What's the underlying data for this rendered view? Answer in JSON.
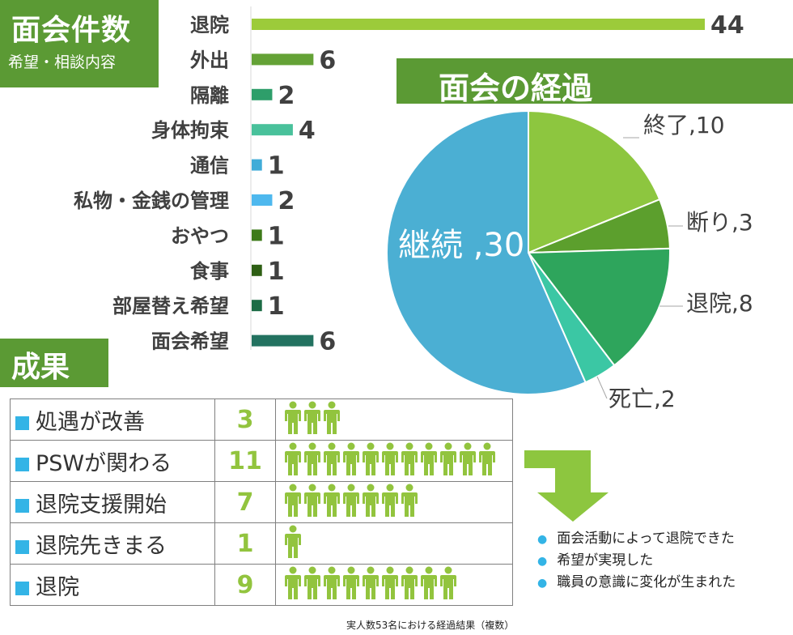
{
  "title": {
    "main": "面会件数",
    "sub": "希望・相談内容"
  },
  "pie_title": "面会の経過",
  "results_title": "成果",
  "chart_data": [
    {
      "type": "bar",
      "orientation": "horizontal",
      "categories": [
        "退院",
        "外出",
        "隔離",
        "身体拘束",
        "通信",
        "私物・金銭の管理",
        "おやつ",
        "食事",
        "部屋替え希望",
        "面会希望"
      ],
      "values": [
        44,
        6,
        2,
        4,
        1,
        2,
        1,
        1,
        1,
        6
      ],
      "colors": [
        "#9ccb3a",
        "#64a236",
        "#2e9e6a",
        "#49c19b",
        "#41acd8",
        "#4eb8ee",
        "#3d7a19",
        "#2e5f14",
        "#1c6b45",
        "#237260"
      ]
    },
    {
      "type": "pie",
      "slices": [
        {
          "label": "終了",
          "value": 10,
          "color": "#8dc63f"
        },
        {
          "label": "断り",
          "value": 3,
          "color": "#5c9f2d"
        },
        {
          "label": "退院",
          "value": 8,
          "color": "#2ea55c"
        },
        {
          "label": "死亡",
          "value": 2,
          "color": "#3bc7a4"
        },
        {
          "label": "継続 ",
          "value": 30,
          "color": "#4bafd3"
        }
      ]
    },
    {
      "type": "table",
      "rows": [
        {
          "label": "処遇が改善",
          "value": 3
        },
        {
          "label": "PSWが関わる",
          "value": 11
        },
        {
          "label": "退院支援開始",
          "value": 7
        },
        {
          "label": "退院先きまる",
          "value": 1
        },
        {
          "label": "退院",
          "value": 9
        }
      ]
    }
  ],
  "outcomes": [
    "面会活動によって退院できた",
    "希望が実現した",
    "職員の意識に変化が生まれた"
  ],
  "footnote": "実人数53名における経過結果（複数）",
  "colors": {
    "header_green": "#5b9a34",
    "person_green": "#92c43e",
    "bullet_blue": "#33b4e6"
  }
}
